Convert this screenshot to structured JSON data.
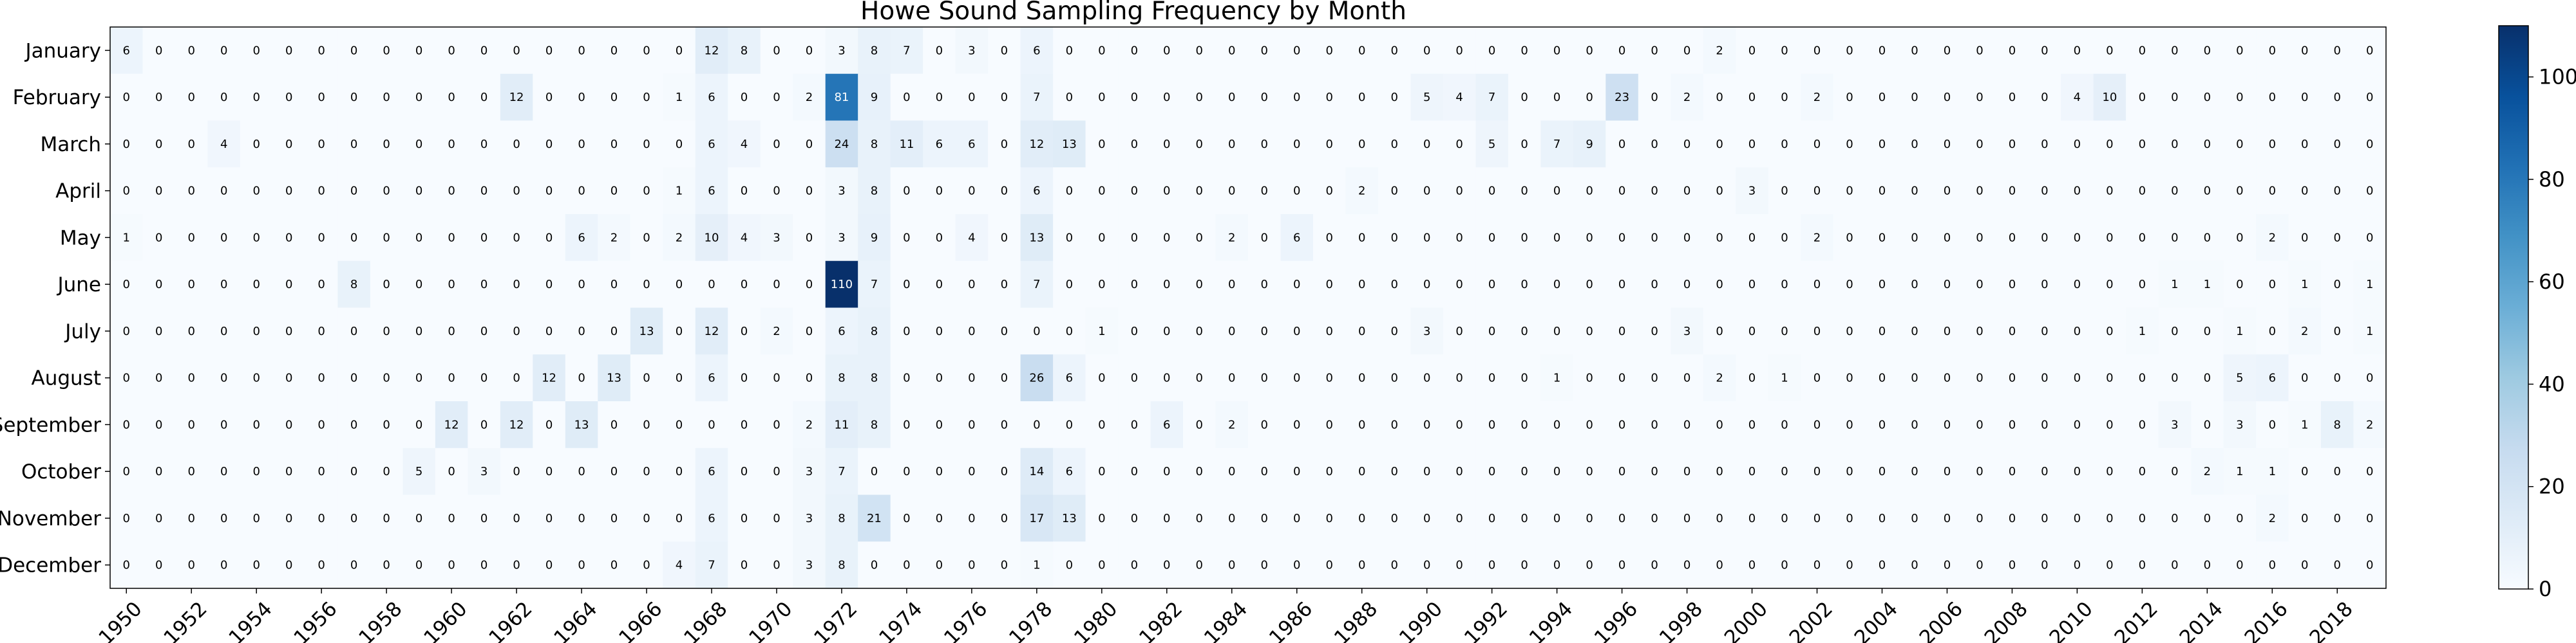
{
  "chart_data": {
    "type": "heatmap",
    "title": "Howe Sound Sampling Frequency by Month",
    "xlabel": "",
    "ylabel": "",
    "rows": [
      "January",
      "February",
      "March",
      "April",
      "May",
      "June",
      "July",
      "August",
      "September",
      "October",
      "November",
      "December"
    ],
    "columns": [
      1950,
      1951,
      1952,
      1953,
      1954,
      1955,
      1956,
      1957,
      1958,
      1959,
      1960,
      1961,
      1962,
      1963,
      1964,
      1965,
      1966,
      1967,
      1968,
      1969,
      1970,
      1971,
      1972,
      1973,
      1974,
      1975,
      1976,
      1977,
      1978,
      1979,
      1980,
      1981,
      1982,
      1983,
      1984,
      1985,
      1986,
      1987,
      1988,
      1989,
      1990,
      1991,
      1992,
      1993,
      1994,
      1995,
      1996,
      1997,
      1998,
      1999,
      2000,
      2001,
      2002,
      2003,
      2004,
      2005,
      2006,
      2007,
      2008,
      2009,
      2010,
      2011,
      2012,
      2013,
      2014,
      2015,
      2016,
      2017,
      2018,
      2019
    ],
    "x_tick_labels": [
      "1950",
      "1952",
      "1954",
      "1956",
      "1958",
      "1960",
      "1962",
      "1964",
      "1966",
      "1968",
      "1970",
      "1972",
      "1974",
      "1976",
      "1978",
      "1980",
      "1982",
      "1984",
      "1986",
      "1988",
      "1990",
      "1992",
      "1994",
      "1996",
      "1998",
      "2000",
      "2002",
      "2004",
      "2006",
      "2008",
      "2010",
      "2012",
      "2014",
      "2016",
      "2018"
    ],
    "values": [
      [
        6,
        0,
        0,
        0,
        0,
        0,
        0,
        0,
        0,
        0,
        0,
        0,
        0,
        0,
        0,
        0,
        0,
        0,
        12,
        8,
        0,
        0,
        3,
        8,
        7,
        0,
        3,
        0,
        6,
        0,
        0,
        0,
        0,
        0,
        0,
        0,
        0,
        0,
        0,
        0,
        0,
        0,
        0,
        0,
        0,
        0,
        0,
        0,
        0,
        2,
        0,
        0,
        0,
        0,
        0,
        0,
        0,
        0,
        0,
        0,
        0,
        0,
        0,
        0,
        0,
        0,
        0,
        0,
        0,
        0
      ],
      [
        0,
        0,
        0,
        0,
        0,
        0,
        0,
        0,
        0,
        0,
        0,
        0,
        12,
        0,
        0,
        0,
        0,
        1,
        6,
        0,
        0,
        2,
        81,
        9,
        0,
        0,
        0,
        0,
        7,
        0,
        0,
        0,
        0,
        0,
        0,
        0,
        0,
        0,
        0,
        0,
        5,
        4,
        7,
        0,
        0,
        0,
        23,
        0,
        2,
        0,
        0,
        0,
        2,
        0,
        0,
        0,
        0,
        0,
        0,
        0,
        4,
        10,
        0,
        0,
        0,
        0,
        0,
        0,
        0,
        0
      ],
      [
        0,
        0,
        0,
        4,
        0,
        0,
        0,
        0,
        0,
        0,
        0,
        0,
        0,
        0,
        0,
        0,
        0,
        0,
        6,
        4,
        0,
        0,
        24,
        8,
        11,
        6,
        6,
        0,
        12,
        13,
        0,
        0,
        0,
        0,
        0,
        0,
        0,
        0,
        0,
        0,
        0,
        0,
        5,
        0,
        7,
        9,
        0,
        0,
        0,
        0,
        0,
        0,
        0,
        0,
        0,
        0,
        0,
        0,
        0,
        0,
        0,
        0,
        0,
        0,
        0,
        0,
        0,
        0,
        0,
        0
      ],
      [
        0,
        0,
        0,
        0,
        0,
        0,
        0,
        0,
        0,
        0,
        0,
        0,
        0,
        0,
        0,
        0,
        0,
        1,
        6,
        0,
        0,
        0,
        3,
        8,
        0,
        0,
        0,
        0,
        6,
        0,
        0,
        0,
        0,
        0,
        0,
        0,
        0,
        0,
        2,
        0,
        0,
        0,
        0,
        0,
        0,
        0,
        0,
        0,
        0,
        0,
        3,
        0,
        0,
        0,
        0,
        0,
        0,
        0,
        0,
        0,
        0,
        0,
        0,
        0,
        0,
        0,
        0,
        0,
        0,
        0
      ],
      [
        1,
        0,
        0,
        0,
        0,
        0,
        0,
        0,
        0,
        0,
        0,
        0,
        0,
        0,
        6,
        2,
        0,
        2,
        10,
        4,
        3,
        0,
        3,
        9,
        0,
        0,
        4,
        0,
        13,
        0,
        0,
        0,
        0,
        0,
        2,
        0,
        6,
        0,
        0,
        0,
        0,
        0,
        0,
        0,
        0,
        0,
        0,
        0,
        0,
        0,
        0,
        0,
        2,
        0,
        0,
        0,
        0,
        0,
        0,
        0,
        0,
        0,
        0,
        0,
        0,
        0,
        2,
        0,
        0,
        0
      ],
      [
        0,
        0,
        0,
        0,
        0,
        0,
        0,
        8,
        0,
        0,
        0,
        0,
        0,
        0,
        0,
        0,
        0,
        0,
        0,
        0,
        0,
        0,
        110,
        7,
        0,
        0,
        0,
        0,
        7,
        0,
        0,
        0,
        0,
        0,
        0,
        0,
        0,
        0,
        0,
        0,
        0,
        0,
        0,
        0,
        0,
        0,
        0,
        0,
        0,
        0,
        0,
        0,
        0,
        0,
        0,
        0,
        0,
        0,
        0,
        0,
        0,
        0,
        0,
        1,
        1,
        0,
        0,
        1,
        0,
        1
      ],
      [
        0,
        0,
        0,
        0,
        0,
        0,
        0,
        0,
        0,
        0,
        0,
        0,
        0,
        0,
        0,
        0,
        13,
        0,
        12,
        0,
        2,
        0,
        6,
        8,
        0,
        0,
        0,
        0,
        0,
        0,
        1,
        0,
        0,
        0,
        0,
        0,
        0,
        0,
        0,
        0,
        3,
        0,
        0,
        0,
        0,
        0,
        0,
        0,
        3,
        0,
        0,
        0,
        0,
        0,
        0,
        0,
        0,
        0,
        0,
        0,
        0,
        0,
        1,
        0,
        0,
        1,
        0,
        2,
        0,
        1
      ],
      [
        0,
        0,
        0,
        0,
        0,
        0,
        0,
        0,
        0,
        0,
        0,
        0,
        0,
        12,
        0,
        13,
        0,
        0,
        6,
        0,
        0,
        0,
        8,
        8,
        0,
        0,
        0,
        0,
        26,
        6,
        0,
        0,
        0,
        0,
        0,
        0,
        0,
        0,
        0,
        0,
        0,
        0,
        0,
        0,
        1,
        0,
        0,
        0,
        0,
        2,
        0,
        1,
        0,
        0,
        0,
        0,
        0,
        0,
        0,
        0,
        0,
        0,
        0,
        0,
        0,
        5,
        6,
        0,
        0,
        0
      ],
      [
        0,
        0,
        0,
        0,
        0,
        0,
        0,
        0,
        0,
        0,
        12,
        0,
        12,
        0,
        13,
        0,
        0,
        0,
        0,
        0,
        0,
        2,
        11,
        8,
        0,
        0,
        0,
        0,
        0,
        0,
        0,
        0,
        6,
        0,
        2,
        0,
        0,
        0,
        0,
        0,
        0,
        0,
        0,
        0,
        0,
        0,
        0,
        0,
        0,
        0,
        0,
        0,
        0,
        0,
        0,
        0,
        0,
        0,
        0,
        0,
        0,
        0,
        0,
        3,
        0,
        3,
        0,
        1,
        8,
        2
      ],
      [
        0,
        0,
        0,
        0,
        0,
        0,
        0,
        0,
        0,
        5,
        0,
        3,
        0,
        0,
        0,
        0,
        0,
        0,
        6,
        0,
        0,
        3,
        7,
        0,
        0,
        0,
        0,
        0,
        14,
        6,
        0,
        0,
        0,
        0,
        0,
        0,
        0,
        0,
        0,
        0,
        0,
        0,
        0,
        0,
        0,
        0,
        0,
        0,
        0,
        0,
        0,
        0,
        0,
        0,
        0,
        0,
        0,
        0,
        0,
        0,
        0,
        0,
        0,
        0,
        2,
        1,
        1,
        0,
        0,
        0
      ],
      [
        0,
        0,
        0,
        0,
        0,
        0,
        0,
        0,
        0,
        0,
        0,
        0,
        0,
        0,
        0,
        0,
        0,
        0,
        6,
        0,
        0,
        3,
        8,
        21,
        0,
        0,
        0,
        0,
        17,
        13,
        0,
        0,
        0,
        0,
        0,
        0,
        0,
        0,
        0,
        0,
        0,
        0,
        0,
        0,
        0,
        0,
        0,
        0,
        0,
        0,
        0,
        0,
        0,
        0,
        0,
        0,
        0,
        0,
        0,
        0,
        0,
        0,
        0,
        0,
        0,
        0,
        2,
        0,
        0,
        0
      ],
      [
        0,
        0,
        0,
        0,
        0,
        0,
        0,
        0,
        0,
        0,
        0,
        0,
        0,
        0,
        0,
        0,
        0,
        4,
        7,
        0,
        0,
        3,
        8,
        0,
        0,
        0,
        0,
        0,
        1,
        0,
        0,
        0,
        0,
        0,
        0,
        0,
        0,
        0,
        0,
        0,
        0,
        0,
        0,
        0,
        0,
        0,
        0,
        0,
        0,
        0,
        0,
        0,
        0,
        0,
        0,
        0,
        0,
        0,
        0,
        0,
        0,
        0,
        0,
        0,
        0,
        0,
        0,
        0,
        0,
        0
      ]
    ],
    "colormap": "Blues",
    "vmin": 0,
    "vmax": 110,
    "colorbar_ticks": [
      0,
      20,
      40,
      60,
      80,
      100
    ],
    "grid": false,
    "colors": {
      "low": "#f7fbff",
      "high": "#08306b",
      "frame": "#000000"
    }
  }
}
